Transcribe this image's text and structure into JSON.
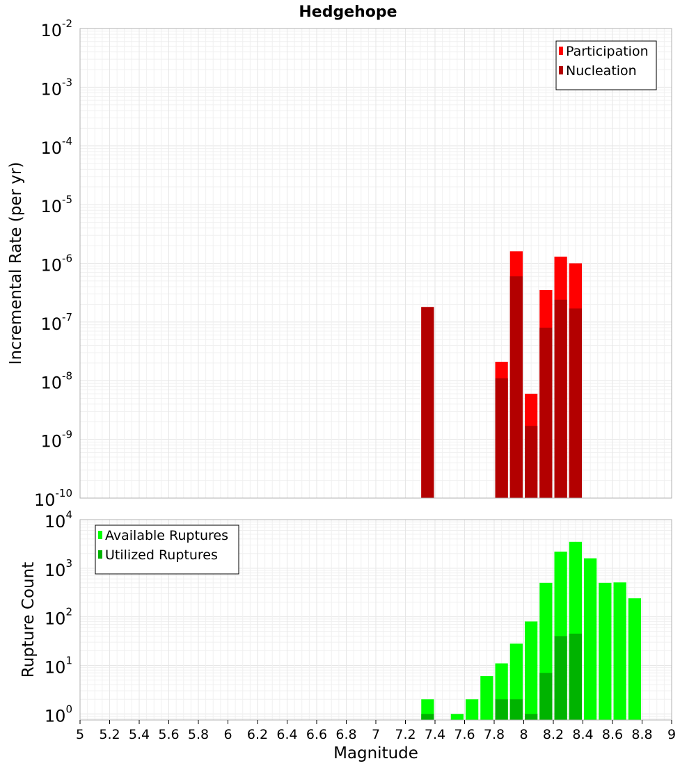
{
  "title": "Hedgehope",
  "xlabel": "Magnitude",
  "x_ticks": [
    5,
    5.2,
    5.4,
    5.6,
    5.8,
    6,
    6.2,
    6.4,
    6.6,
    6.8,
    7,
    7.2,
    7.4,
    7.6,
    7.8,
    8,
    8.2,
    8.4,
    8.6,
    8.8,
    9
  ],
  "x_tick_labels": [
    "5",
    "5.2",
    "5.4",
    "5.6",
    "5.8",
    "6",
    "6.2",
    "6.4",
    "6.6",
    "6.8",
    "7",
    "7.2",
    "7.4",
    "7.6",
    "7.8",
    "8",
    "8.2",
    "8.4",
    "8.6",
    "8.8",
    "9"
  ],
  "xlim": [
    5,
    9
  ],
  "chart_data": [
    {
      "type": "bar",
      "ylabel": "Incremental Rate (per yr)",
      "yscale": "log",
      "ylim": [
        1e-10,
        0.01
      ],
      "y_tick_exponents": [
        "-10",
        "-9",
        "-8",
        "-7",
        "-6",
        "-5",
        "-4",
        "-3",
        "-2"
      ],
      "y_tick_base": "10",
      "grid": true,
      "legend_position": "top-right",
      "bin_width": 0.1,
      "x": [
        7.35,
        7.85,
        7.95,
        8.05,
        8.15,
        8.25,
        8.35
      ],
      "series": [
        {
          "name": "Participation",
          "color": "#ff0000",
          "values": [
            1.8e-07,
            2.1e-08,
            1.6e-06,
            6e-09,
            3.5e-07,
            1.3e-06,
            1e-06
          ]
        },
        {
          "name": "Nucleation",
          "color": "#b30000",
          "values": [
            1.8e-07,
            1.1e-08,
            6e-07,
            1.7e-09,
            8e-08,
            2.4e-07,
            1.7e-07
          ]
        }
      ]
    },
    {
      "type": "bar",
      "ylabel": "Rupture Count",
      "yscale": "log",
      "ylim": [
        0.75,
        10000
      ],
      "y_tick_exponents": [
        "0",
        "1",
        "2",
        "3",
        "4"
      ],
      "y_tick_base": "10",
      "grid": true,
      "legend_position": "top-left",
      "bin_width": 0.1,
      "x": [
        7.35,
        7.55,
        7.65,
        7.75,
        7.85,
        7.95,
        8.05,
        8.15,
        8.25,
        8.35,
        8.45,
        8.55,
        8.65,
        8.75
      ],
      "series": [
        {
          "name": "Available Ruptures",
          "color": "#00ff00",
          "values": [
            2,
            1,
            2,
            6,
            11,
            28,
            80,
            500,
            2200,
            3500,
            1600,
            500,
            510,
            240
          ]
        },
        {
          "name": "Utilized Ruptures",
          "color": "#00b300",
          "values": [
            1,
            null,
            null,
            null,
            2,
            2,
            1,
            7,
            40,
            45,
            null,
            null,
            null,
            null
          ]
        }
      ]
    }
  ]
}
